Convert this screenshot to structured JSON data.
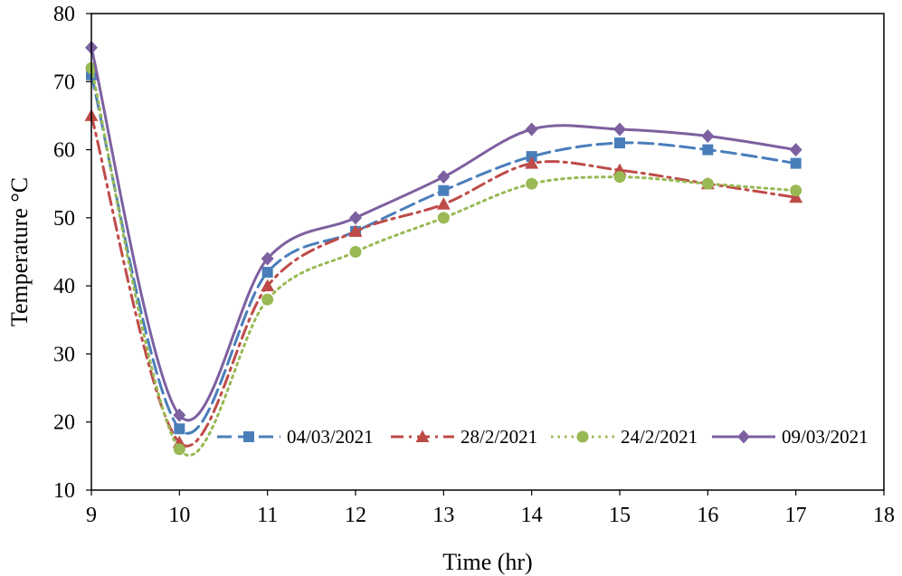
{
  "chart_data": {
    "type": "line",
    "title": "",
    "xlabel": "Time (hr)",
    "ylabel": "Temperature °C",
    "xlim": [
      9,
      18
    ],
    "ylim": [
      10,
      80
    ],
    "xticks": [
      9,
      10,
      11,
      12,
      13,
      14,
      15,
      16,
      17,
      18
    ],
    "yticks": [
      10,
      20,
      30,
      40,
      50,
      60,
      70,
      80
    ],
    "grid": false,
    "legend_position": "inside-bottom",
    "x": [
      9,
      10,
      11,
      12,
      13,
      14,
      15,
      16,
      17
    ],
    "series": [
      {
        "name": "04/03/2021",
        "color": "#4a7ebb",
        "marker": "square",
        "dash": "long-dash",
        "values": [
          71,
          19,
          42,
          48,
          54,
          59,
          61,
          60,
          58
        ]
      },
      {
        "name": "28/2/2021",
        "color": "#be4b48",
        "marker": "triangle",
        "dash": "dash-dot",
        "values": [
          65,
          17,
          40,
          48,
          52,
          58,
          57,
          55,
          53
        ]
      },
      {
        "name": "24/2/2021",
        "color": "#98b954",
        "marker": "circle",
        "dash": "dotted",
        "values": [
          72,
          16,
          38,
          45,
          50,
          55,
          56,
          55,
          54
        ]
      },
      {
        "name": "09/03/2021",
        "color": "#7d60a0",
        "marker": "diamond",
        "dash": "solid",
        "values": [
          75,
          21,
          44,
          50,
          56,
          63,
          63,
          62,
          60
        ]
      }
    ]
  }
}
